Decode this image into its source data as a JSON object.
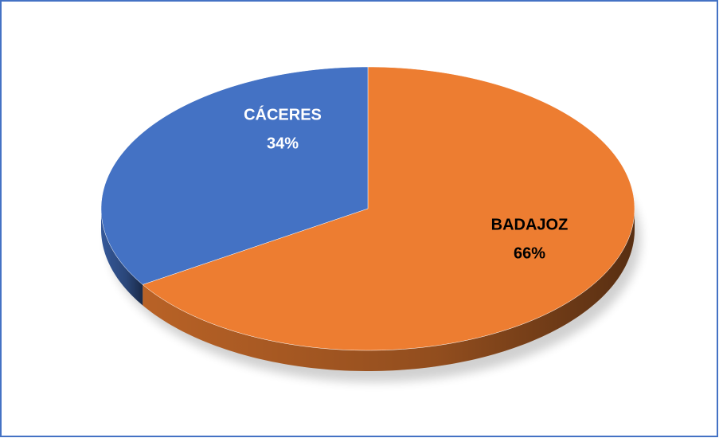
{
  "chart_data": {
    "type": "pie",
    "categories": [
      "CÁCERES",
      "BADAJOZ"
    ],
    "values": [
      34,
      66
    ],
    "value_labels": [
      "34%",
      "66%"
    ],
    "colors": [
      "#4472c4",
      "#ed7d31"
    ]
  }
}
